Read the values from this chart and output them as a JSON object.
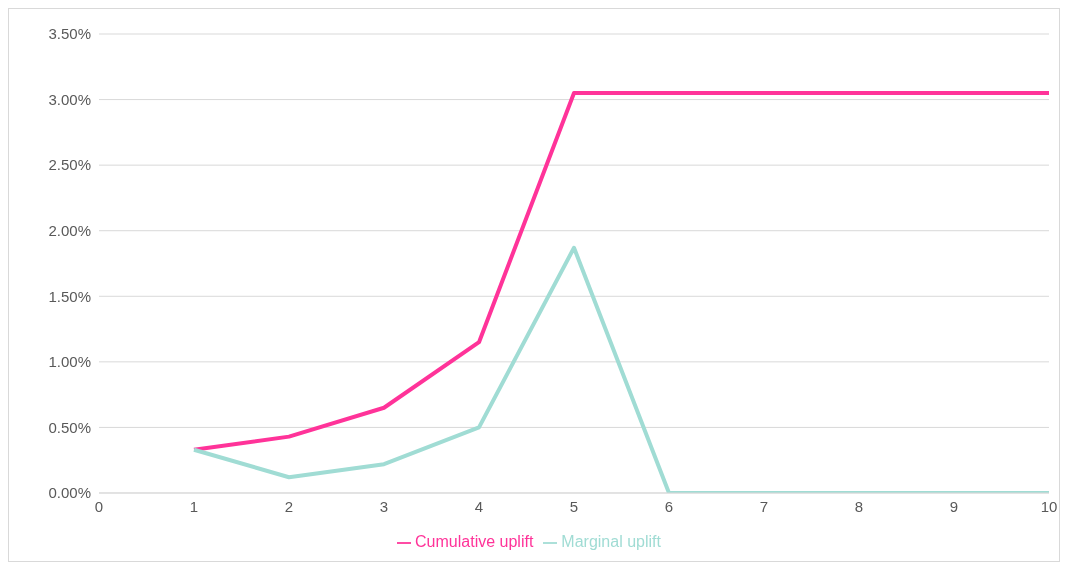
{
  "chart_data": {
    "type": "line",
    "categories": [
      "0",
      "1",
      "2",
      "3",
      "4",
      "5",
      "6",
      "7",
      "8",
      "9",
      "10"
    ],
    "series": [
      {
        "name": "Cumulative uplift",
        "color": "#ff3399",
        "values": [
          null,
          0.33,
          0.43,
          0.65,
          1.15,
          3.05,
          3.05,
          3.05,
          3.05,
          3.05,
          3.05
        ]
      },
      {
        "name": "Marginal uplift",
        "color": "#a0dcd4",
        "values": [
          null,
          0.33,
          0.12,
          0.22,
          0.5,
          1.87,
          0,
          0,
          0,
          0,
          0
        ]
      }
    ],
    "ylim": [
      0,
      3.5
    ],
    "yticks": [
      {
        "value": 0,
        "label": "0.00%"
      },
      {
        "value": 0.5,
        "label": "0.50%"
      },
      {
        "value": 1,
        "label": "1.00%"
      },
      {
        "value": 1.5,
        "label": "1.50%"
      },
      {
        "value": 2,
        "label": "2.00%"
      },
      {
        "value": 2.5,
        "label": "2.50%"
      },
      {
        "value": 3,
        "label": "3.00%"
      },
      {
        "value": 3.5,
        "label": "3.50%"
      }
    ],
    "grid": "y",
    "legend": "bottom",
    "marker": "none",
    "line_style": "solid"
  }
}
